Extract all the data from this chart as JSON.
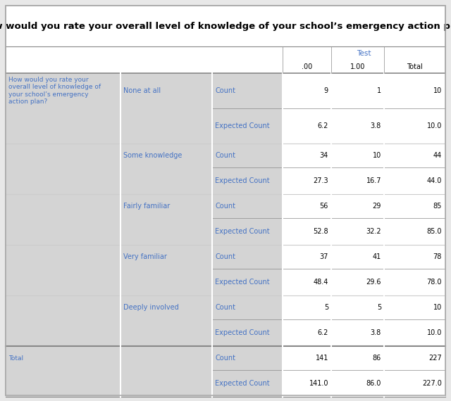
{
  "title": "How would you rate your overall level of knowledge of your school’s emergency action plan?",
  "col_header_test": "Test",
  "col_header_00": ".00",
  "col_header_100": "1.00",
  "col_header_total": "Total",
  "rows": [
    {
      "col1": "How would you rate your\noverall level of knowledge of\nyour school’s emergency\naction plan?",
      "col2": "None at all",
      "col3": "Count",
      "col4": "9",
      "col5": "1",
      "col6": "10"
    },
    {
      "col1": "",
      "col2": "",
      "col3": "Expected Count",
      "col4": "6.2",
      "col5": "3.8",
      "col6": "10.0"
    },
    {
      "col1": "",
      "col2": "Some knowledge",
      "col3": "Count",
      "col4": "34",
      "col5": "10",
      "col6": "44"
    },
    {
      "col1": "",
      "col2": "",
      "col3": "Expected Count",
      "col4": "27.3",
      "col5": "16.7",
      "col6": "44.0"
    },
    {
      "col1": "",
      "col2": "Fairly familiar",
      "col3": "Count",
      "col4": "56",
      "col5": "29",
      "col6": "85"
    },
    {
      "col1": "",
      "col2": "",
      "col3": "Expected Count",
      "col4": "52.8",
      "col5": "32.2",
      "col6": "85.0"
    },
    {
      "col1": "",
      "col2": "Very familiar",
      "col3": "Count",
      "col4": "37",
      "col5": "41",
      "col6": "78"
    },
    {
      "col1": "",
      "col2": "",
      "col3": "Expected Count",
      "col4": "48.4",
      "col5": "29.6",
      "col6": "78.0"
    },
    {
      "col1": "",
      "col2": "Deeply involved",
      "col3": "Count",
      "col4": "5",
      "col5": "5",
      "col6": "10"
    },
    {
      "col1": "",
      "col2": "",
      "col3": "Expected Count",
      "col4": "6.2",
      "col5": "3.8",
      "col6": "10.0"
    },
    {
      "col1": "Total",
      "col2": "",
      "col3": "Count",
      "col4": "141",
      "col5": "86",
      "col6": "227"
    },
    {
      "col1": "",
      "col2": "",
      "col3": "Expected Count",
      "col4": "141.0",
      "col5": "86.0",
      "col6": "227.0"
    }
  ],
  "bg_light": "#d4d4d4",
  "bg_white": "#ffffff",
  "text_blue": "#4472c4",
  "text_black": "#000000",
  "border_outer": "#aaaaaa",
  "border_inner": "#ffffff",
  "border_header": "#888888",
  "font_size": 7.0,
  "title_font_size": 9.5
}
